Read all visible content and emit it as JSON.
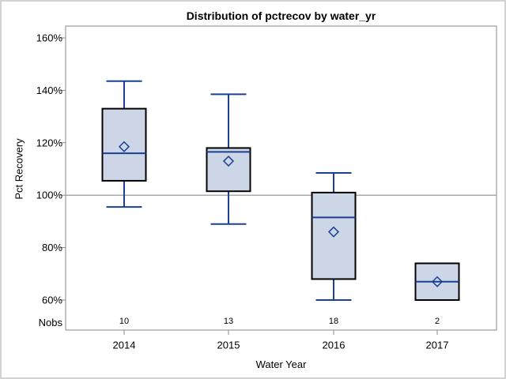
{
  "title": "Distribution of pctrecov by water_yr",
  "y_axis": {
    "label": "Pct Recovery"
  },
  "x_axis": {
    "label": "Water Year"
  },
  "nobs_label": "Nobs",
  "colors": {
    "box_fill": "#ccd6e6",
    "box_stroke": "#000000",
    "whisker_median_mean": "#1a3f94",
    "frame": "#8a8a8a",
    "reference_line": "#a9a9a9",
    "text": "#000000",
    "outer_border": "#d3d3d3"
  },
  "chart_data": {
    "type": "boxplot",
    "title": "Distribution of pctrecov by water_yr",
    "xlabel": "Water Year",
    "ylabel": "Pct Recovery",
    "categories": [
      "2014",
      "2015",
      "2016",
      "2017"
    ],
    "nobs": [
      "10",
      "13",
      "18",
      "2"
    ],
    "y_ticks": [
      60,
      80,
      100,
      120,
      140,
      160
    ],
    "y_tick_labels": [
      "60%",
      "80%",
      "100%",
      "120%",
      "140%",
      "160%"
    ],
    "ylim": [
      48.5,
      164.5
    ],
    "reference_line": 100,
    "grid": "off",
    "legend": "none",
    "mean_marker": "diamond",
    "series": [
      {
        "category": "2014",
        "n": 10,
        "whisker_low": 95.5,
        "q1": 105.5,
        "median": 116,
        "q3": 133,
        "whisker_high": 143.5,
        "mean": 118.5
      },
      {
        "category": "2015",
        "n": 13,
        "whisker_low": 89,
        "q1": 101.5,
        "median": 116.5,
        "q3": 118,
        "whisker_high": 138.5,
        "mean": 113
      },
      {
        "category": "2016",
        "n": 18,
        "whisker_low": 60,
        "q1": 68,
        "median": 91.5,
        "q3": 101,
        "whisker_high": 108.5,
        "mean": 86
      },
      {
        "category": "2017",
        "n": 2,
        "whisker_low": 60,
        "q1": 60,
        "median": 67,
        "q3": 74,
        "whisker_high": 74,
        "mean": 67
      }
    ]
  }
}
